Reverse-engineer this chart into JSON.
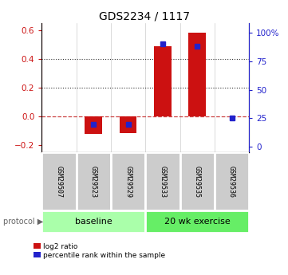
{
  "title": "GDS2234 / 1117",
  "samples": [
    "GSM29507",
    "GSM29523",
    "GSM29529",
    "GSM29533",
    "GSM29535",
    "GSM29536"
  ],
  "log2_ratio": [
    0.0,
    -0.12,
    -0.115,
    0.49,
    0.585,
    0.0
  ],
  "percentile_rank_pct": [
    null,
    20.0,
    20.0,
    90.0,
    88.0,
    25.0
  ],
  "groups": [
    {
      "label": "baseline",
      "start": 0,
      "end": 3,
      "color": "#aaffaa"
    },
    {
      "label": "20 wk exercise",
      "start": 3,
      "end": 6,
      "color": "#66ee66"
    }
  ],
  "ylim_left": [
    -0.25,
    0.65
  ],
  "ylim_right": [
    -5,
    108
  ],
  "yticks_left": [
    -0.2,
    0.0,
    0.2,
    0.4,
    0.6
  ],
  "yticks_right": [
    0,
    25,
    50,
    75,
    100
  ],
  "ytick_right_labels": [
    "0",
    "25",
    "50",
    "75",
    "100%"
  ],
  "bar_color": "#cc1111",
  "dot_color": "#2222cc",
  "zero_line_color": "#cc4444",
  "dotted_line_color": "#333333",
  "left_tick_color": "#cc1111",
  "right_tick_color": "#2222cc",
  "bar_width": 0.5,
  "sample_bg": "#cccccc",
  "sample_border": "#ffffff"
}
